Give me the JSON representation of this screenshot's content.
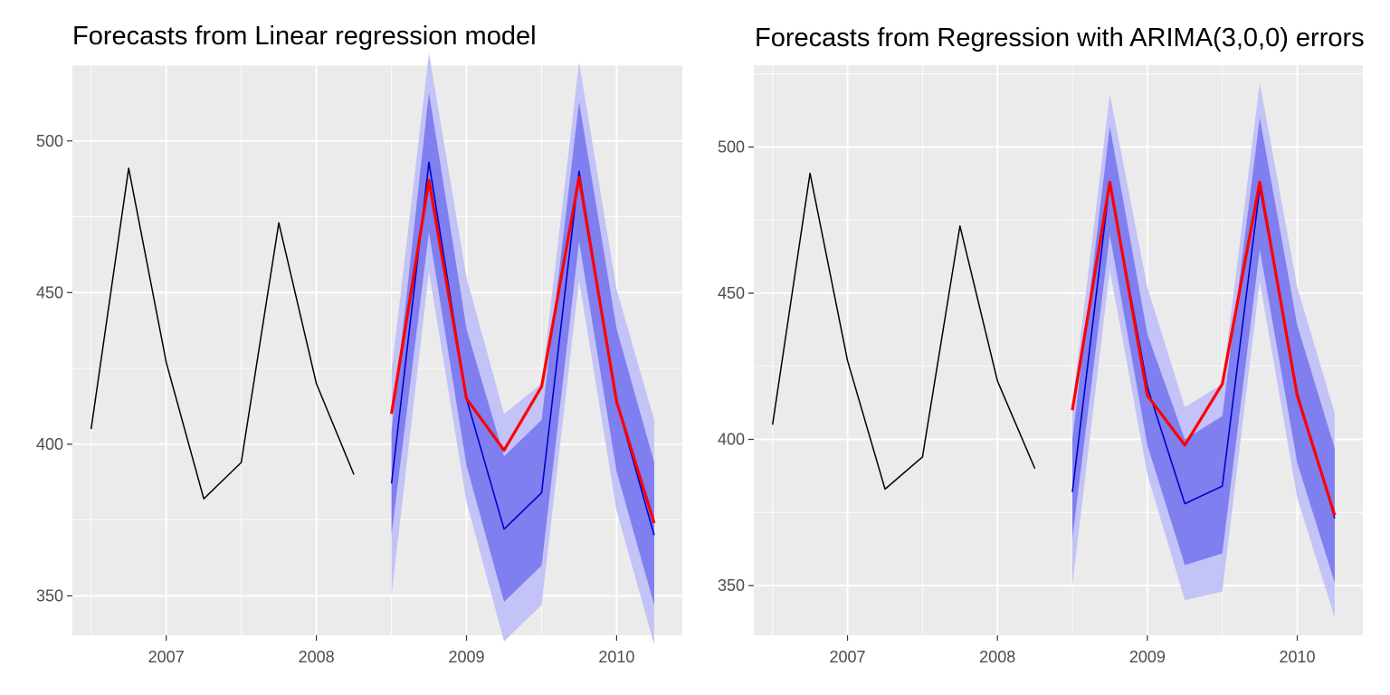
{
  "chart_data": [
    {
      "type": "line",
      "title": "Forecasts from Linear regression model",
      "xlabel": "",
      "ylabel": "",
      "xlim": [
        2006.375,
        2010.4375
      ],
      "ylim": [
        337,
        525
      ],
      "x_ticks": [
        2007,
        2008,
        2009,
        2010
      ],
      "x_tick_labels": [
        "2007",
        "2008",
        "2009",
        "2010"
      ],
      "y_ticks": [
        350,
        400,
        450,
        500
      ],
      "y_tick_labels": [
        "350",
        "400",
        "450",
        "500"
      ],
      "grid": true,
      "legend": "none",
      "history": {
        "x": [
          2006.5,
          2006.75,
          2007.0,
          2007.25,
          2007.5,
          2007.75,
          2008.0,
          2008.25
        ],
        "y": [
          405,
          491,
          427,
          382,
          394,
          473,
          420,
          390
        ]
      },
      "forecast": {
        "x": [
          2008.5,
          2008.75,
          2009.0,
          2009.25,
          2009.5,
          2009.75,
          2010.0,
          2010.25
        ],
        "mean": [
          387,
          493,
          415,
          372,
          384,
          490,
          414,
          370
        ],
        "lo80": [
          370,
          470,
          393,
          348,
          360,
          467,
          391,
          347
        ],
        "hi80": [
          404,
          516,
          438,
          396,
          408,
          513,
          438,
          394
        ],
        "lo95": [
          350,
          457,
          381,
          335,
          347,
          454,
          378,
          334
        ],
        "hi95": [
          424,
          529,
          455,
          410,
          420,
          526,
          451,
          408
        ]
      },
      "actual": {
        "x": [
          2008.5,
          2008.75,
          2009.0,
          2009.25,
          2009.5,
          2009.75,
          2010.0,
          2010.25
        ],
        "y": [
          410,
          487,
          415,
          398,
          419,
          488,
          414,
          374
        ]
      },
      "colors": {
        "history": "#000000",
        "mean": "#0000cc",
        "band80": "#7f7fef",
        "band95": "#c3c3f7",
        "actual": "#ff0000",
        "panel": "#ebebeb",
        "grid": "#ffffff"
      }
    },
    {
      "type": "line",
      "title": "Forecasts from Regression with ARIMA(3,0,0) errors",
      "xlabel": "",
      "ylabel": "",
      "xlim": [
        2006.375,
        2010.4375
      ],
      "ylim": [
        333,
        528
      ],
      "x_ticks": [
        2007,
        2008,
        2009,
        2010
      ],
      "x_tick_labels": [
        "2007",
        "2008",
        "2009",
        "2010"
      ],
      "y_ticks": [
        350,
        400,
        450,
        500
      ],
      "y_tick_labels": [
        "350",
        "400",
        "450",
        "500"
      ],
      "grid": true,
      "legend": "none",
      "history": {
        "x": [
          2006.5,
          2006.75,
          2007.0,
          2007.25,
          2007.5,
          2007.75,
          2008.0,
          2008.25
        ],
        "y": [
          405,
          491,
          427,
          383,
          394,
          473,
          420,
          390
        ]
      },
      "forecast": {
        "x": [
          2008.5,
          2008.75,
          2009.0,
          2009.25,
          2009.5,
          2009.75,
          2010.0,
          2010.25
        ],
        "mean": [
          382,
          488,
          418,
          378,
          384,
          486,
          416,
          373
        ],
        "lo80": [
          366,
          470,
          398,
          357,
          361,
          465,
          392,
          351
        ],
        "hi80": [
          400,
          507,
          436,
          400,
          408,
          510,
          439,
          397
        ],
        "lo95": [
          350,
          458,
          388,
          345,
          348,
          454,
          380,
          339
        ],
        "hi95": [
          412,
          518,
          452,
          411,
          419,
          522,
          452,
          409
        ]
      },
      "actual": {
        "x": [
          2008.5,
          2008.75,
          2009.0,
          2009.25,
          2009.5,
          2009.75,
          2010.0,
          2010.25
        ],
        "y": [
          410,
          488,
          415,
          398,
          419,
          488,
          415,
          374
        ]
      },
      "colors": {
        "history": "#000000",
        "mean": "#0000cc",
        "band80": "#7f7fef",
        "band95": "#c3c3f7",
        "actual": "#ff0000",
        "panel": "#ebebeb",
        "grid": "#ffffff"
      }
    }
  ]
}
